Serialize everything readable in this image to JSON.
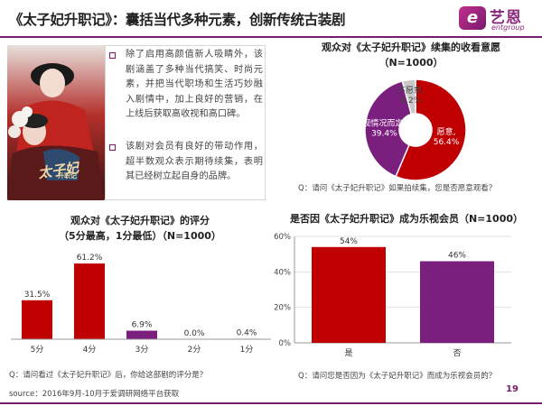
{
  "page": {
    "title": "《太子妃升职记》：囊括当代多种元素，创新传统古装剧",
    "page_number": "19",
    "source": "source：2016年9月-10月于爱调研网络平台获取"
  },
  "logo": {
    "mark": "e",
    "cn": "艺恩",
    "en": "entgroup"
  },
  "poster": {
    "caption": "太子妃",
    "sub": "升职记"
  },
  "text_box": {
    "paragraphs": [
      "除了启用高颜值新人吸睛外，该剧涵盖了多种当代搞笑、时尚元素，并把当代职场和生活巧妙融入剧情中，加上良好的营销，在上线后获取高收视和高口碑。",
      "该剧对会员有良好的带动作用，超半数观众表示期待续集，表明其已经树立起自身的品牌。"
    ]
  },
  "colors": {
    "accent": "#7a1a6e",
    "red": "#c00000",
    "purple": "#7b1f7e",
    "gray": "#c9c9c9"
  },
  "chart_data": [
    {
      "type": "pie",
      "title": "观众对《太子妃升职记》续集的收看意愿",
      "subtitle": "（N=1000）",
      "labels": [
        "愿意,",
        "视情况而定,",
        "不愿意,"
      ],
      "values": [
        56.4,
        39.4,
        4.2
      ],
      "value_labels": [
        "56.4%",
        "39.4%",
        "4.2%"
      ],
      "colors": [
        "#c00000",
        "#7b1f7e",
        "#c9c9c9"
      ],
      "note": "Q：请问《太子妃升职记》如果拍续集，您是否愿意观看？"
    },
    {
      "type": "bar",
      "title": "观众对《太子妃升职记》的评分",
      "subtitle": "（5分最高，1分最低）（N=1000）",
      "categories": [
        "5分",
        "4分",
        "3分",
        "2分",
        "1分"
      ],
      "values": [
        31.5,
        61.2,
        6.9,
        0.0,
        0.4
      ],
      "value_labels": [
        "31.5%",
        "61.2%",
        "6.9%",
        "0.0%",
        "0.4%"
      ],
      "colors": [
        "#c00000",
        "#c00000",
        "#7b1f7e",
        "#7b1f7e",
        "#7b1f7e"
      ],
      "ylim": [
        0,
        70
      ],
      "note": "Q：请问看过《太子妃升职记》后，你给这部剧的评分是？"
    },
    {
      "type": "bar",
      "title": "是否因《太子妃升职记》成为乐视会员（N=1000）",
      "categories": [
        "是",
        "否"
      ],
      "values": [
        54,
        46
      ],
      "value_labels": [
        "54%",
        "46%"
      ],
      "colors": [
        "#c00000",
        "#7b1f7e"
      ],
      "ylim": [
        0,
        60
      ],
      "yticks": [
        "0%",
        "20%",
        "40%",
        "60%"
      ],
      "grid": true,
      "note": "Q：请问您是否因为《太子妃升职记》而成为乐视会员的？"
    }
  ]
}
